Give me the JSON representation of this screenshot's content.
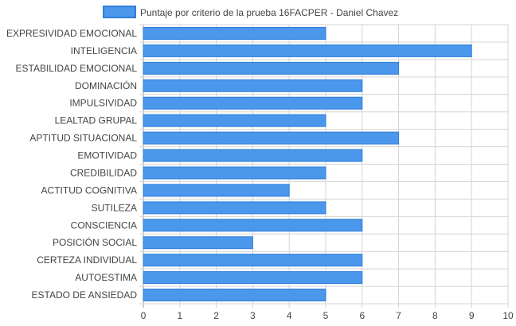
{
  "chart_data": {
    "type": "bar",
    "orientation": "horizontal",
    "legend": {
      "label": "Puntaje por criterio de la prueba 16FACPER - Daniel  Chavez",
      "placement": "top"
    },
    "categories": [
      "EXPRESIVIDAD EMOCIONAL",
      "INTELIGENCIA",
      "ESTABILIDAD EMOCIONAL",
      "DOMINACIÓN",
      "IMPULSIVIDAD",
      "LEALTAD GRUPAL",
      "APTITUD SITUACIONAL",
      "EMOTIVIDAD",
      "CREDIBILIDAD",
      "ACTITUD COGNITIVA",
      "SUTILEZA",
      "CONSCIENCIA",
      "POSICIÓN SOCIAL",
      "CERTEZA INDIVIDUAL",
      "AUTOESTIMA",
      "ESTADO DE ANSIEDAD"
    ],
    "values": [
      5,
      9,
      7,
      6,
      6,
      5,
      7,
      6,
      5,
      4,
      5,
      6,
      3,
      6,
      6,
      5
    ],
    "xlim": [
      0,
      10
    ],
    "xticks": [
      "0",
      "1",
      "2",
      "3",
      "4",
      "5",
      "6",
      "7",
      "8",
      "9",
      "10"
    ],
    "grid": true,
    "colors": {
      "bar_fill": "#4a97eb",
      "bar_stroke": "#2f7fd9",
      "grid": "#d4d4d4",
      "text": "#444444"
    }
  }
}
